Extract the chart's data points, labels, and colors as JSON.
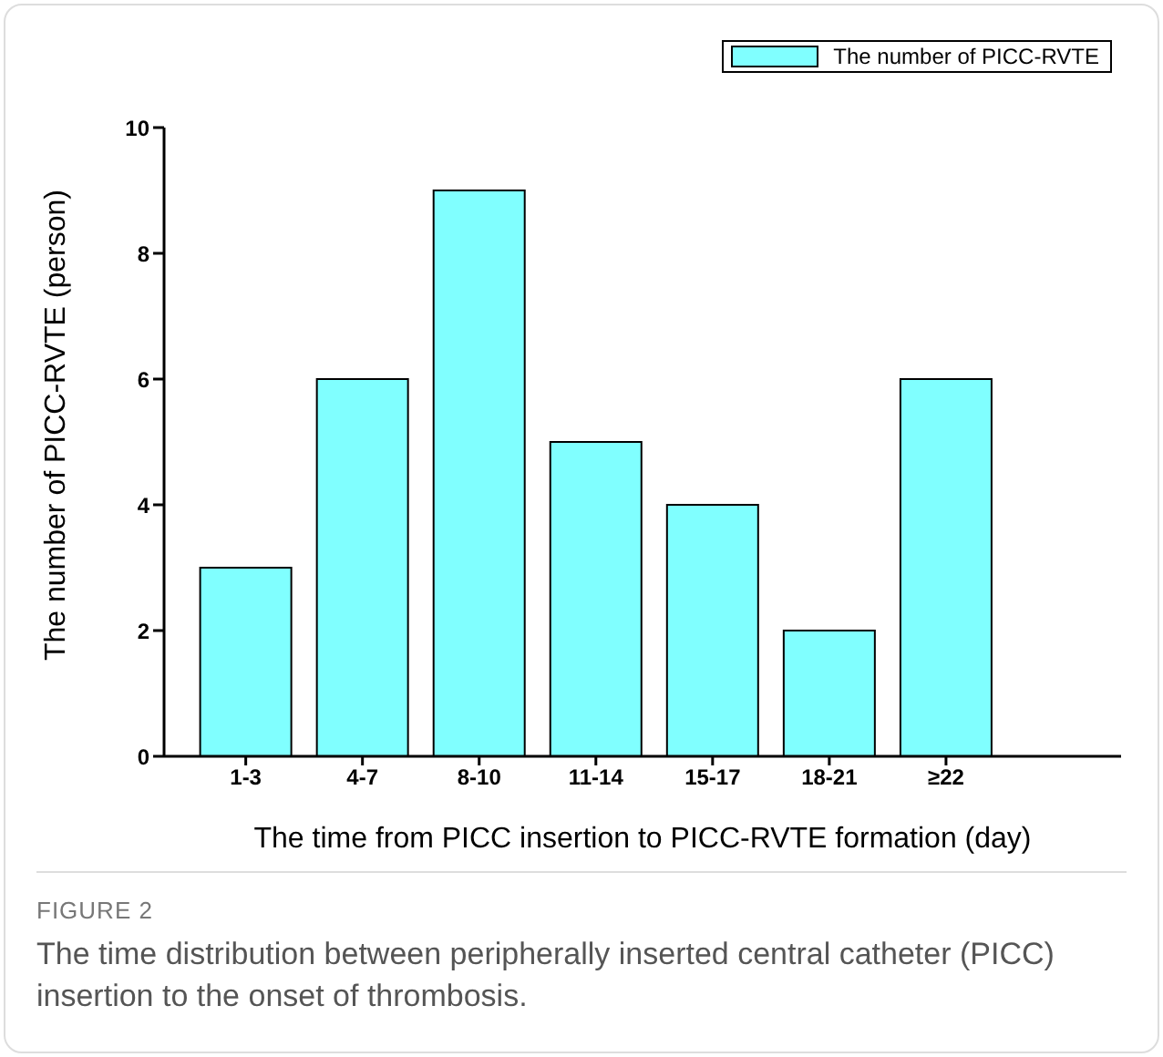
{
  "chart_data": {
    "type": "bar",
    "xlabel": "The time from PICC insertion to PICC-RVTE formation (day)",
    "ylabel": "The number of PICC-RVTE (person)",
    "categories": [
      "1-3",
      "4-7",
      "8-10",
      "11-14",
      "15-17",
      "18-21",
      "≥22"
    ],
    "series": [
      {
        "name": "The number of PICC-RVTE",
        "color": "#80ffff",
        "values": [
          3,
          6,
          9,
          5,
          4,
          2,
          6
        ]
      }
    ],
    "ylim": [
      0,
      10
    ],
    "yticks": [
      0,
      2,
      4,
      6,
      8,
      10
    ],
    "grid": false,
    "legend": "top right",
    "annotations": [
      "FIGURE 2",
      "The time distribution between peripherally inserted central catheter (PICC) insertion to the onset of thrombosis."
    ]
  }
}
